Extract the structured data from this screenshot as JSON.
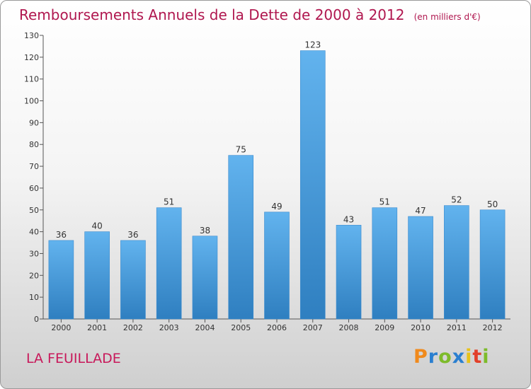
{
  "chart_data": {
    "type": "bar",
    "title": "Remboursements Annuels de la Dette de 2000 à 2012",
    "unit": "(en milliers d'€)",
    "categories": [
      "2000",
      "2001",
      "2002",
      "2003",
      "2004",
      "2005",
      "2006",
      "2007",
      "2008",
      "2009",
      "2010",
      "2011",
      "2012"
    ],
    "values": [
      36,
      40,
      36,
      51,
      38,
      75,
      49,
      123,
      43,
      51,
      47,
      52,
      50
    ],
    "ylim": [
      0,
      130
    ],
    "yticks": [
      0,
      10,
      20,
      30,
      40,
      50,
      60,
      70,
      80,
      90,
      100,
      110,
      120,
      130
    ],
    "grid": false,
    "bar_color": "#4a9fdf",
    "bar_color_light": "#62b3ee",
    "bar_color_dark": "#2f7fc0"
  },
  "footer": {
    "place": "LA FEUILLADE",
    "logo_letters": [
      "P",
      "r",
      "o",
      "x",
      "i",
      "t",
      "i"
    ],
    "logo_colors": [
      "#f08a1c",
      "#2a7fd0",
      "#7dbb2a",
      "#2a7fd0",
      "#e8c21a",
      "#e2402a",
      "#7dbb2a"
    ]
  },
  "colors": {
    "title": "#b0174f",
    "place": "#c8185a"
  }
}
